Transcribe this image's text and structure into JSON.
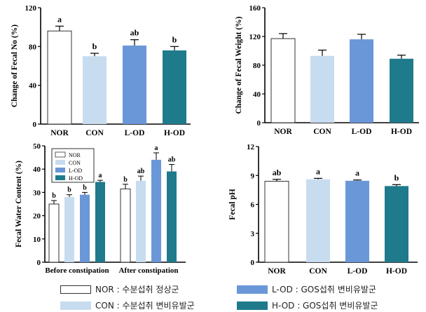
{
  "colors": {
    "NOR": "#ffffff",
    "CON": "#c8dcf0",
    "L-OD": "#6a97d8",
    "H-OD": "#1f7a8c",
    "axis": "#000000"
  },
  "legend_bottom": [
    {
      "key": "NOR",
      "text": "NOR : 수분섭취 정상군"
    },
    {
      "key": "CON",
      "text": "CON : 수분섭취 변비유발군"
    },
    {
      "key": "L-OD",
      "text": "L-OD : GOS섭취 변비유발군"
    },
    {
      "key": "H-OD",
      "text": "H-OD : GOS섭취 변비유발군"
    }
  ],
  "chart_data": [
    {
      "type": "bar",
      "ylabel": "Change of Fecal No (%)",
      "categories": [
        "NOR",
        "CON",
        "L-OD",
        "H-OD"
      ],
      "values": [
        96,
        70,
        81,
        76
      ],
      "errors": [
        5,
        3,
        6,
        4
      ],
      "sig": [
        "a",
        "b",
        "ab",
        "b"
      ],
      "ylim": [
        0,
        120
      ],
      "yticks": [
        0,
        40,
        80,
        120
      ]
    },
    {
      "type": "bar",
      "ylabel": "Change of Fecal Weight (%)",
      "categories": [
        "NOR",
        "CON",
        "L-OD",
        "H-OD"
      ],
      "values": [
        117,
        93,
        116,
        89
      ],
      "errors": [
        7,
        8,
        7,
        5
      ],
      "sig": [
        "",
        "",
        "",
        ""
      ],
      "ylim": [
        0,
        160
      ],
      "yticks": [
        0,
        40,
        80,
        120,
        160
      ]
    },
    {
      "type": "bar",
      "ylabel": "Fecal Water Content (%)",
      "categories": [
        "Before constipation",
        "After constipation"
      ],
      "series": [
        {
          "name": "NOR",
          "values": [
            25,
            31.5
          ],
          "errors": [
            1.5,
            2
          ],
          "sig": [
            "b",
            "b"
          ]
        },
        {
          "name": "CON",
          "values": [
            28,
            35
          ],
          "errors": [
            1,
            2
          ],
          "sig": [
            "b",
            "ab"
          ]
        },
        {
          "name": "L-OD",
          "values": [
            29,
            44
          ],
          "errors": [
            1,
            3
          ],
          "sig": [
            "b",
            "a"
          ]
        },
        {
          "name": "H-OD",
          "values": [
            34.5,
            39
          ],
          "errors": [
            0.7,
            3
          ],
          "sig": [
            "a",
            "ab"
          ]
        }
      ],
      "ylim": [
        0,
        50
      ],
      "yticks": [
        0,
        10,
        20,
        30,
        40,
        50
      ],
      "legend": "top-left"
    },
    {
      "type": "bar",
      "ylabel": "Fecal pH",
      "categories": [
        "NOR",
        "CON",
        "L-OD",
        "H-OD"
      ],
      "values": [
        8.4,
        8.6,
        8.45,
        7.9
      ],
      "errors": [
        0.2,
        0.1,
        0.08,
        0.15
      ],
      "sig": [
        "ab",
        "a",
        "a",
        "b"
      ],
      "ylim": [
        0,
        12
      ],
      "yticks": [
        0,
        3,
        6,
        9,
        12
      ]
    }
  ]
}
